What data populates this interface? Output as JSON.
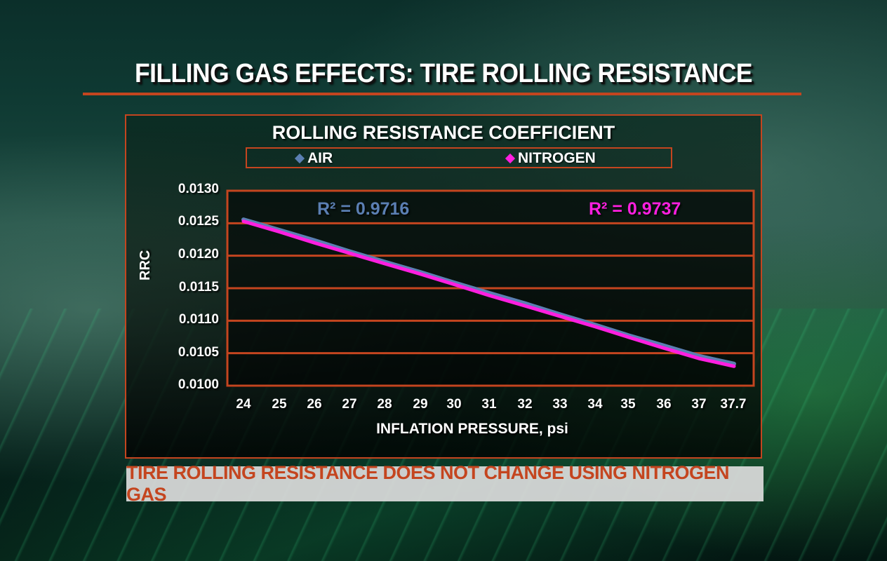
{
  "header": {
    "title": "FILLING GAS EFFECTS: TIRE ROLLING RESISTANCE"
  },
  "footer": {
    "banner": "TIRE ROLLING RESISTANCE DOES NOT CHANGE USING NITROGEN GAS"
  },
  "colors": {
    "accent_border": "#c4451f",
    "air_series": "#5b7fb3",
    "nitrogen_series": "#ff1fe0",
    "banner_text": "#c4451f",
    "banner_bg": "#dcdcdc"
  },
  "chart_data": {
    "type": "line",
    "title": "ROLLING RESISTANCE COEFFICIENT",
    "xlabel": "INFLATION PRESSURE, psi",
    "ylabel": "RRC",
    "categories": [
      "24",
      "25",
      "26",
      "27",
      "28",
      "29",
      "30",
      "31",
      "32",
      "33",
      "34",
      "35",
      "36",
      "37",
      "37.7"
    ],
    "x": [
      24,
      25,
      26,
      27,
      28,
      29,
      30,
      31,
      32,
      33,
      34,
      35,
      36,
      37,
      37.7
    ],
    "ylim": [
      0.01,
      0.013
    ],
    "yticks": [
      "0.0130",
      "0.0125",
      "0.0120",
      "0.0115",
      "0.0110",
      "0.0105",
      "0.0100"
    ],
    "grid": true,
    "legend_position": "top",
    "series": [
      {
        "name": "AIR",
        "marker": "diamond",
        "color": "#5b7fb3",
        "values": [
          0.01254,
          0.01238,
          0.01222,
          0.01205,
          0.01189,
          0.01173,
          0.01157,
          0.01141,
          0.01125,
          0.01108,
          0.01092,
          0.01076,
          0.0106,
          0.01044,
          0.01032
        ],
        "r_squared_label": "R² = 0.9716"
      },
      {
        "name": "NITROGEN",
        "marker": "diamond",
        "color": "#ff1fe0",
        "values": [
          0.01254,
          0.01238,
          0.01221,
          0.01205,
          0.01189,
          0.01173,
          0.01157,
          0.0114,
          0.01124,
          0.01108,
          0.01092,
          0.01076,
          0.01059,
          0.01043,
          0.01031
        ],
        "r_squared_label": "R² = 0.9737"
      }
    ]
  }
}
